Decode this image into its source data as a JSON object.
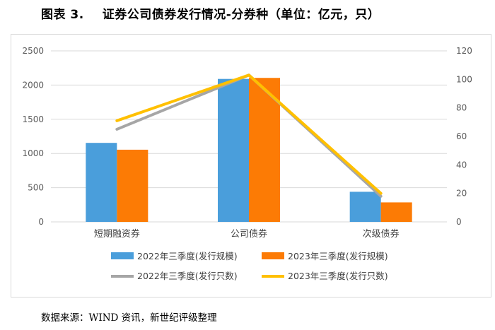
{
  "figure": {
    "label": "图表 3.",
    "title": "证券公司债券发行情况-分券种（单位：亿元，只）"
  },
  "source": "数据来源：WIND 资讯，新世纪评级整理",
  "colors": {
    "bar2022": "#4a9edb",
    "bar2023": "#fc7b05",
    "line2022": "#a6a6a6",
    "line2023": "#ffc000",
    "grid": "#d9d9d9"
  },
  "chart_data": {
    "type": "bar+line",
    "title": "证券公司债券发行情况-分券种（单位：亿元，只）",
    "categories": [
      "短期融资券",
      "公司债券",
      "次级债券"
    ],
    "left_axis": {
      "min": 0,
      "max": 2500,
      "step": 500,
      "ticks": [
        "0",
        "500",
        "1000",
        "1500",
        "2000",
        "2500"
      ]
    },
    "right_axis": {
      "min": 0,
      "max": 120,
      "step": 20,
      "ticks": [
        "0",
        "20",
        "40",
        "60",
        "80",
        "100",
        "120"
      ]
    },
    "bar_series": [
      {
        "name": "2022年三季度(发行规模)",
        "values": [
          1155,
          2090,
          440
        ]
      },
      {
        "name": "2023年三季度(发行规模)",
        "values": [
          1055,
          2105,
          285
        ]
      }
    ],
    "line_series": [
      {
        "name": "2022年三季度(发行只数)",
        "values": [
          65,
          103,
          18
        ]
      },
      {
        "name": "2023年三季度(发行只数)",
        "values": [
          71,
          103,
          20
        ]
      }
    ],
    "legend_position": "bottom"
  }
}
